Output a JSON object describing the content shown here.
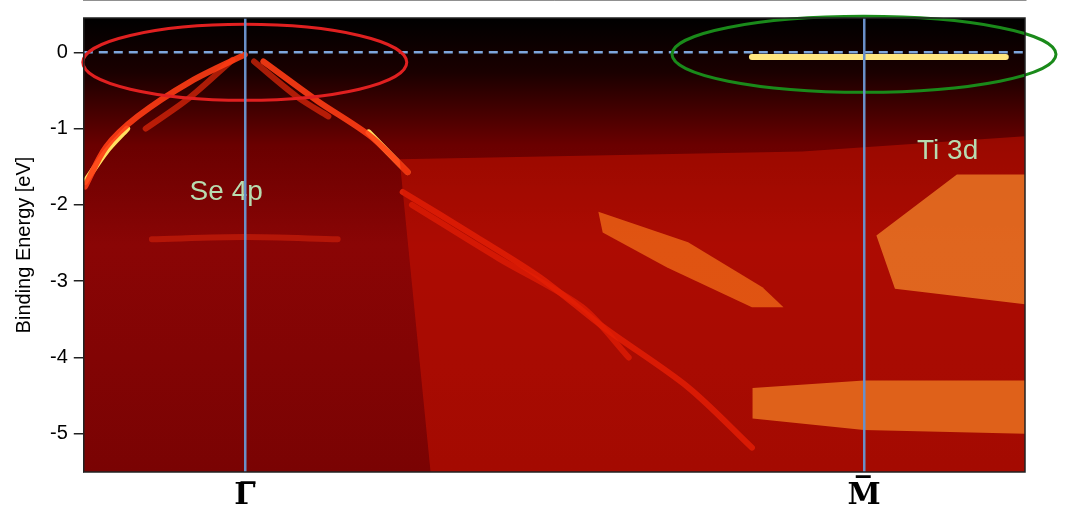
{
  "chart_data": {
    "type": "line",
    "ylabel": "Binding Energy [eV]",
    "xlim": [
      -0.26,
      1.26
    ],
    "xticks": [
      {
        "value": 0,
        "label": "Γ̅"
      },
      {
        "value": 1,
        "label": "M̅"
      }
    ],
    "ylim": [
      -5.5,
      0.45
    ],
    "yticks": [
      -5,
      -4,
      -3,
      -2,
      -1,
      0
    ],
    "grid": "x",
    "reference_lines": [
      {
        "y": 0,
        "color": "#7ea6dc",
        "line_style": "dashed"
      }
    ],
    "annotations": [
      {
        "text": "Se 4p",
        "x": -0.03,
        "y": -1.83,
        "color": "#b8dcb0"
      },
      {
        "text": "Ti 3d",
        "x": 1.135,
        "y": -1.3,
        "color": "#b8dcb0"
      }
    ],
    "series": [
      {
        "type": "area",
        "color": "rgba(215,20,0,0.45)",
        "points": [
          [
            0.25,
            -1.4
          ],
          [
            0.9,
            -1.3
          ],
          [
            1.26,
            -1.1
          ],
          [
            1.26,
            -5.5
          ],
          [
            0.3,
            -5.5
          ]
        ]
      },
      {
        "type": "area",
        "color": "rgba(255,170,40,0.8)",
        "points": [
          [
            0.571,
            -2.09
          ],
          [
            0.716,
            -2.49
          ],
          [
            0.836,
            -3.08
          ],
          [
            0.87,
            -3.34
          ],
          [
            0.819,
            -3.34
          ],
          [
            0.682,
            -2.82
          ],
          [
            0.578,
            -2.36
          ]
        ]
      },
      {
        "type": "area",
        "color": "rgba(255,200,60,0.8)",
        "points": [
          [
            0.82,
            -4.4
          ],
          [
            1.0,
            -4.3
          ],
          [
            1.26,
            -4.3
          ],
          [
            1.26,
            -5.0
          ],
          [
            1.0,
            -4.95
          ],
          [
            0.82,
            -4.8
          ]
        ]
      },
      {
        "type": "area",
        "color": "rgba(255,210,70,0.8)",
        "points": [
          [
            1.15,
            -1.6
          ],
          [
            1.26,
            -1.6
          ],
          [
            1.26,
            -3.3
          ],
          [
            1.05,
            -3.1
          ],
          [
            1.02,
            -2.4
          ]
        ]
      },
      {
        "type": "line",
        "color": "rgba(255,60,20,0.9)",
        "points": [
          [
            0,
            -0.03
          ],
          [
            -0.087,
            -0.38
          ],
          [
            -0.173,
            -0.84
          ],
          [
            -0.224,
            -1.24
          ],
          [
            -0.258,
            -1.76
          ]
        ]
      },
      {
        "type": "line",
        "color": "#ffe060",
        "points": [
          [
            -0.19,
            -1.0
          ],
          [
            -0.224,
            -1.3
          ],
          [
            -0.258,
            -1.7
          ]
        ]
      },
      {
        "type": "line",
        "color": "rgba(230,40,10,0.7)",
        "points": [
          [
            -0.02,
            -0.1
          ],
          [
            -0.09,
            -0.6
          ],
          [
            -0.16,
            -1.0
          ]
        ]
      },
      {
        "type": "line",
        "color": "rgba(255,60,20,0.9)",
        "points": [
          [
            0.03,
            -0.12
          ],
          [
            0.118,
            -0.64
          ],
          [
            0.203,
            -1.1
          ],
          [
            0.263,
            -1.57
          ]
        ]
      },
      {
        "type": "line",
        "color": "#ffe060",
        "points": [
          [
            0.2,
            -1.05
          ],
          [
            0.263,
            -1.57
          ]
        ]
      },
      {
        "type": "line",
        "color": "rgba(230,40,10,0.7)",
        "points": [
          [
            0.015,
            -0.12
          ],
          [
            0.084,
            -0.58
          ],
          [
            0.135,
            -0.84
          ]
        ]
      },
      {
        "type": "line",
        "color": "rgba(240,40,10,0.8)",
        "points": [
          [
            0.255,
            -1.83
          ],
          [
            0.374,
            -2.42
          ],
          [
            0.477,
            -2.95
          ],
          [
            0.579,
            -3.6
          ],
          [
            0.716,
            -4.39
          ],
          [
            0.819,
            -5.18
          ]
        ]
      },
      {
        "type": "line",
        "color": "rgba(240,40,10,0.7)",
        "points": [
          [
            0.27,
            -2.0
          ],
          [
            0.41,
            -2.7
          ],
          [
            0.545,
            -3.34
          ],
          [
            0.62,
            -4.0
          ]
        ]
      },
      {
        "type": "line",
        "color": "rgba(200,30,10,0.7)",
        "points": [
          [
            -0.15,
            -2.45
          ],
          [
            0,
            -2.42
          ],
          [
            0.15,
            -2.45
          ]
        ]
      },
      {
        "type": "line",
        "color": "#ffe680",
        "points": [
          [
            0.819,
            -0.06
          ],
          [
            1.0,
            -0.06
          ],
          [
            1.229,
            -0.06
          ]
        ]
      }
    ]
  }
}
